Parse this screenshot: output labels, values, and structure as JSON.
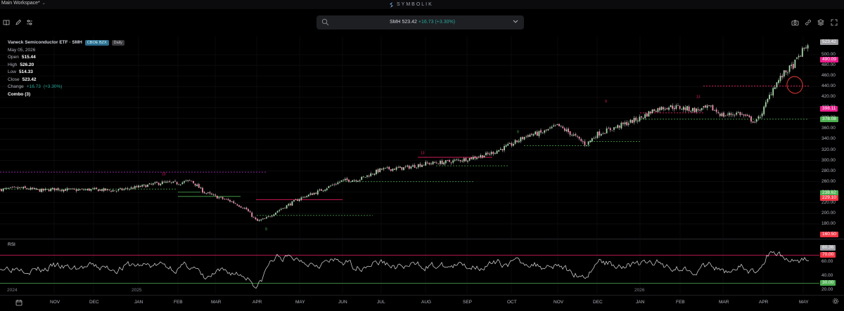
{
  "topbar": {
    "workspace": "Main Workspace*",
    "brand": "SYMBOLIK"
  },
  "search": {
    "symbol": "SMH",
    "price": "523.42",
    "change": "+16.73",
    "change_pct": "(+3.30%)"
  },
  "legend": {
    "name": "Vaneck Semiconductor ETF · SMH",
    "exchange": "CBOE BZX",
    "interval": "Daily",
    "date": "May 05, 2026",
    "open_label": "Open",
    "open": "515.44",
    "high_label": "High",
    "high": "526.20",
    "low_label": "Low",
    "low": "514.33",
    "close_label": "Close",
    "close": "523.42",
    "change_label": "Change",
    "change": "+16.73",
    "change_pct": "(+3.30%)",
    "indicator": "Combo (3)"
  },
  "rsi": {
    "label": "RSI",
    "axis": [
      "80.36",
      "70.00",
      "60.00",
      "40.00",
      "30.00",
      "20.00"
    ],
    "current": 80.36,
    "overbought": 70,
    "oversold": 30
  },
  "price_axis": {
    "ticks": [
      "500.00",
      "480.00",
      "460.00",
      "440.00",
      "420.00",
      "400.00",
      "380.00",
      "360.00",
      "340.00",
      "320.00",
      "300.00",
      "280.00",
      "260.00",
      "240.00",
      "220.00",
      "200.00",
      "180.00"
    ],
    "badges": [
      {
        "text": "523.42",
        "color": "#9e9ea3"
      },
      {
        "text": "490.09",
        "color": "#e91e8c"
      },
      {
        "text": "398.11",
        "color": "#e91e8c"
      },
      {
        "text": "378.08",
        "color": "#4caf50"
      },
      {
        "text": "238.62",
        "color": "#4caf50"
      },
      {
        "text": "229.10",
        "color": "#f23645"
      },
      {
        "text": "160.50",
        "color": "#f23645"
      }
    ]
  },
  "time_axis": {
    "months": [
      "NOV",
      "DEC",
      "JAN",
      "FEB",
      "MAR",
      "APR",
      "MAY",
      "JUN",
      "JUL",
      "AUG",
      "SEP",
      "OCT",
      "NOV",
      "DEC",
      "JAN",
      "FEB",
      "MAR",
      "APR",
      "MAY"
    ],
    "years": [
      "2024",
      "2025",
      "2026"
    ]
  },
  "colors": {
    "up": "#26a69a",
    "down": "#ef5350",
    "background": "#000000",
    "support": "#4caf50",
    "resistance": "#e91e8c"
  },
  "icons": [
    "book-icon",
    "pencil-icon",
    "sliders-icon",
    "search-icon",
    "chevron-down-icon",
    "camera-icon",
    "link-icon",
    "layers-icon",
    "fullscreen-icon",
    "calendar-icon",
    "settings-icon"
  ],
  "chart_data": {
    "type": "candlestick",
    "symbol": "SMH",
    "y_range": [
      160,
      525
    ],
    "series": [
      {
        "x": "2024-10",
        "y": 245
      },
      {
        "x": "2024-11",
        "y": 247
      },
      {
        "x": "2024-12",
        "y": 244
      },
      {
        "x": "2025-01",
        "y": 252
      },
      {
        "x": "2025-02",
        "y": 256
      },
      {
        "x": "2025-03",
        "y": 222
      },
      {
        "x": "2025-04",
        "y": 182
      },
      {
        "x": "2025-05",
        "y": 228
      },
      {
        "x": "2025-06",
        "y": 262
      },
      {
        "x": "2025-07",
        "y": 286
      },
      {
        "x": "2025-08",
        "y": 296
      },
      {
        "x": "2025-09",
        "y": 305
      },
      {
        "x": "2025-10",
        "y": 346
      },
      {
        "x": "2025-11",
        "y": 352
      },
      {
        "x": "2025-12",
        "y": 362
      },
      {
        "x": "2026-01",
        "y": 402
      },
      {
        "x": "2026-02",
        "y": 398
      },
      {
        "x": "2026-03",
        "y": 385
      },
      {
        "x": "2026-04",
        "y": 455
      },
      {
        "x": "2026-05",
        "y": 523
      }
    ]
  }
}
